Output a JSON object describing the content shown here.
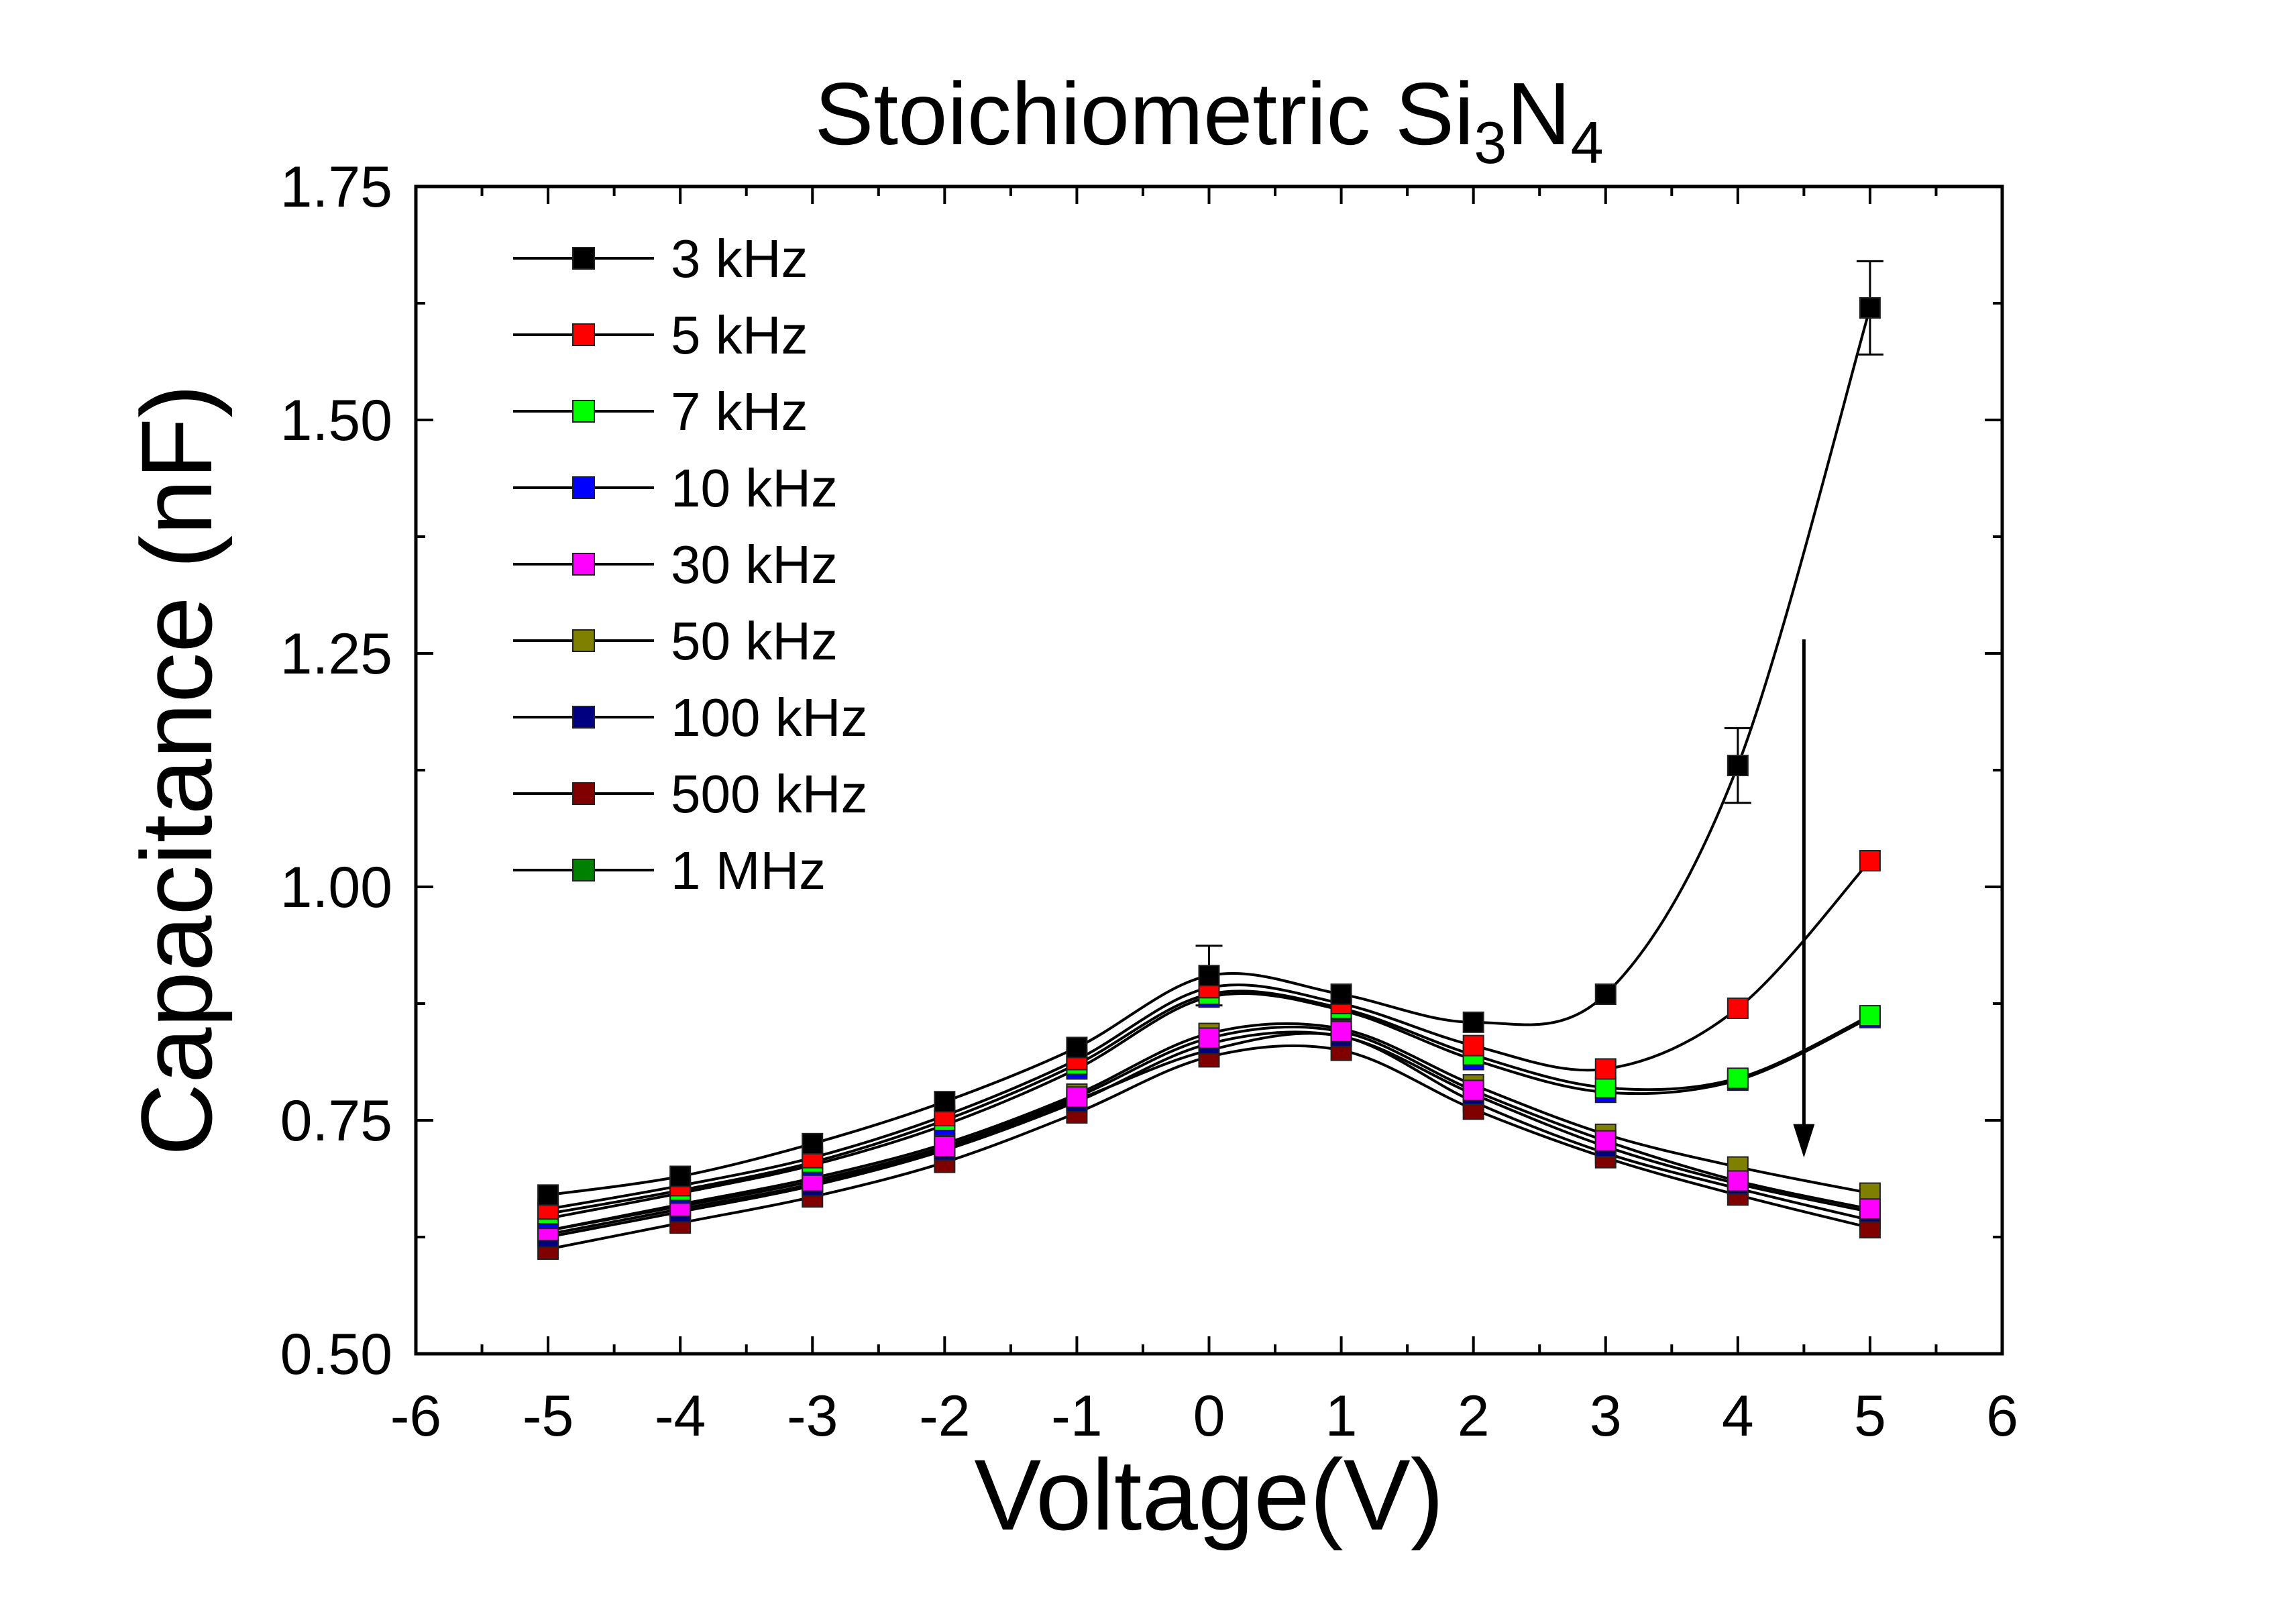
{
  "chart_data": {
    "type": "scatter",
    "title": {
      "main": "Stoichiometric Si",
      "sub1": "3",
      "mid": "N",
      "sub2": "4"
    },
    "xlabel": "Voltage(V)",
    "ylabel": "Capacitance (nF)",
    "xlim": [
      -6,
      6
    ],
    "ylim": [
      0.5,
      1.75
    ],
    "xticks": [
      -6,
      -5,
      -4,
      -3,
      -2,
      -1,
      0,
      1,
      2,
      3,
      4,
      5,
      6
    ],
    "yticks": [
      0.5,
      0.75,
      1.0,
      1.25,
      1.5,
      1.75
    ],
    "xtick_labels": [
      "-6",
      "-5",
      "-4",
      "-3",
      "-2",
      "-1",
      "0",
      "1",
      "2",
      "3",
      "4",
      "5",
      "6"
    ],
    "ytick_labels": [
      "0.50",
      "0.75",
      "1.00",
      "1.25",
      "1.50",
      "1.75"
    ],
    "grid": false,
    "legend_position": "top-left",
    "fit_lines": true,
    "x": [
      -5,
      -4,
      -3,
      -2,
      -1,
      0,
      1,
      2,
      3,
      4,
      5
    ],
    "series": [
      {
        "name": "3 kHz",
        "color": "#000000",
        "values": [
          0.67,
          0.69,
          0.725,
          0.77,
          0.828,
          0.905,
          0.885,
          0.855,
          0.885,
          1.13,
          1.62
        ],
        "error_bars": [
          null,
          null,
          null,
          null,
          null,
          0.032,
          null,
          null,
          null,
          0.04,
          0.05
        ]
      },
      {
        "name": "5 kHz",
        "color": "#ff0000",
        "values": [
          0.655,
          0.68,
          0.71,
          0.755,
          0.815,
          0.892,
          0.875,
          0.83,
          0.805,
          0.87,
          1.028
        ]
      },
      {
        "name": "7 kHz",
        "color": "#00ff00",
        "values": [
          0.65,
          0.675,
          0.705,
          0.75,
          0.81,
          0.885,
          0.87,
          0.82,
          0.785,
          0.795,
          0.862
        ]
      },
      {
        "name": "10 kHz",
        "color": "#0000ff",
        "values": [
          0.645,
          0.672,
          0.702,
          0.745,
          0.805,
          0.882,
          0.868,
          0.815,
          0.78,
          0.793,
          0.86
        ]
      },
      {
        "name": "30 kHz",
        "color": "#ff00ff",
        "values": [
          0.632,
          0.658,
          0.685,
          0.722,
          0.775,
          0.838,
          0.845,
          0.782,
          0.728,
          0.685,
          0.655
        ]
      },
      {
        "name": "50 kHz",
        "color": "#808000",
        "values": [
          0.632,
          0.66,
          0.688,
          0.725,
          0.778,
          0.843,
          0.848,
          0.788,
          0.735,
          0.7,
          0.672
        ]
      },
      {
        "name": "100 kHz",
        "color": "#000080",
        "values": [
          0.625,
          0.652,
          0.68,
          0.718,
          0.77,
          0.832,
          0.84,
          0.778,
          0.722,
          0.682,
          0.652
        ]
      },
      {
        "name": "500 kHz",
        "color": "#800000",
        "values": [
          0.612,
          0.64,
          0.668,
          0.705,
          0.758,
          0.818,
          0.825,
          0.762,
          0.71,
          0.67,
          0.635
        ]
      },
      {
        "name": "1 MHz",
        "color": "#008000",
        "values": [
          0.628,
          0.655,
          0.682,
          0.72,
          0.772,
          0.825,
          0.84,
          0.77,
          0.715,
          0.677,
          0.643
        ]
      }
    ]
  }
}
